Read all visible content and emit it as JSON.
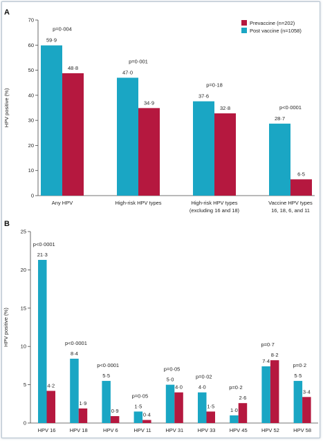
{
  "colors": {
    "prevaccine": "#b5183f",
    "post_vaccine": "#1aa6c4"
  },
  "chart_data": [
    {
      "panel": "A",
      "type": "bar",
      "ylabel": "HPV positive (%)",
      "ylim": [
        0,
        70
      ],
      "yticks": [
        "0",
        "10",
        "20",
        "30",
        "40",
        "50",
        "60",
        "70"
      ],
      "legend": {
        "placement": "top-right",
        "entries": [
          {
            "name": "Prevaccine (n=202)",
            "color": "#b5183f"
          },
          {
            "name": "Post vaccine (n=1058)",
            "color": "#1aa6c4"
          }
        ]
      },
      "categories": [
        [
          "Any HPV"
        ],
        [
          "High-risk HPV types"
        ],
        [
          "High-risk HPV types",
          "(excluding 16 and 18)"
        ],
        [
          "Vaccine HPV types",
          "16, 18, 6, and 11"
        ]
      ],
      "series": [
        {
          "name": "Post vaccine (n=1058)",
          "values": [
            59.9,
            47.0,
            37.6,
            28.7
          ],
          "labels": [
            "59·9",
            "47·0",
            "37·6",
            "28·7"
          ]
        },
        {
          "name": "Prevaccine (n=202)",
          "values": [
            48.8,
            34.9,
            32.8,
            6.5
          ],
          "labels": [
            "48·8",
            "34·9",
            "32·8",
            "6·5"
          ]
        }
      ],
      "p_values": [
        "p=0·004",
        "p=0·001",
        "p=0·18",
        "p<0·0001"
      ]
    },
    {
      "panel": "B",
      "type": "bar",
      "ylabel": "HPV positive (%)",
      "ylim": [
        0,
        25
      ],
      "yticks": [
        "0",
        "5",
        "10",
        "15",
        "20",
        "25"
      ],
      "categories": [
        [
          "HPV 16"
        ],
        [
          "HPV 18"
        ],
        [
          "HPV 6"
        ],
        [
          "HPV 11"
        ],
        [
          "HPV 31"
        ],
        [
          "HPV 33"
        ],
        [
          "HPV 45"
        ],
        [
          "HPV 52"
        ],
        [
          "HPV 58"
        ]
      ],
      "series": [
        {
          "name": "Post vaccine (n=1058)",
          "values": [
            21.3,
            8.4,
            5.5,
            1.5,
            5.0,
            4.0,
            1.0,
            7.4,
            5.5
          ],
          "labels": [
            "21·3",
            "8·4",
            "5·5",
            "1·5",
            "5·0",
            "4·0",
            "1·0",
            "7·4",
            "5·5"
          ]
        },
        {
          "name": "Prevaccine (n=202)",
          "values": [
            4.2,
            1.9,
            0.9,
            0.4,
            4.0,
            1.5,
            2.6,
            8.2,
            3.4
          ],
          "labels": [
            "4·2",
            "1·9",
            "0·9",
            "0·4",
            "4·0",
            "1·5",
            "2·6",
            "8·2",
            "3·4"
          ]
        }
      ],
      "p_values": [
        "p<0·0001",
        "p<0·0001",
        "p<0·0001",
        "p=0·05",
        "p=0·05",
        "p=0·02",
        "p=0·2",
        "p=0·7",
        "p=0·2"
      ]
    }
  ]
}
